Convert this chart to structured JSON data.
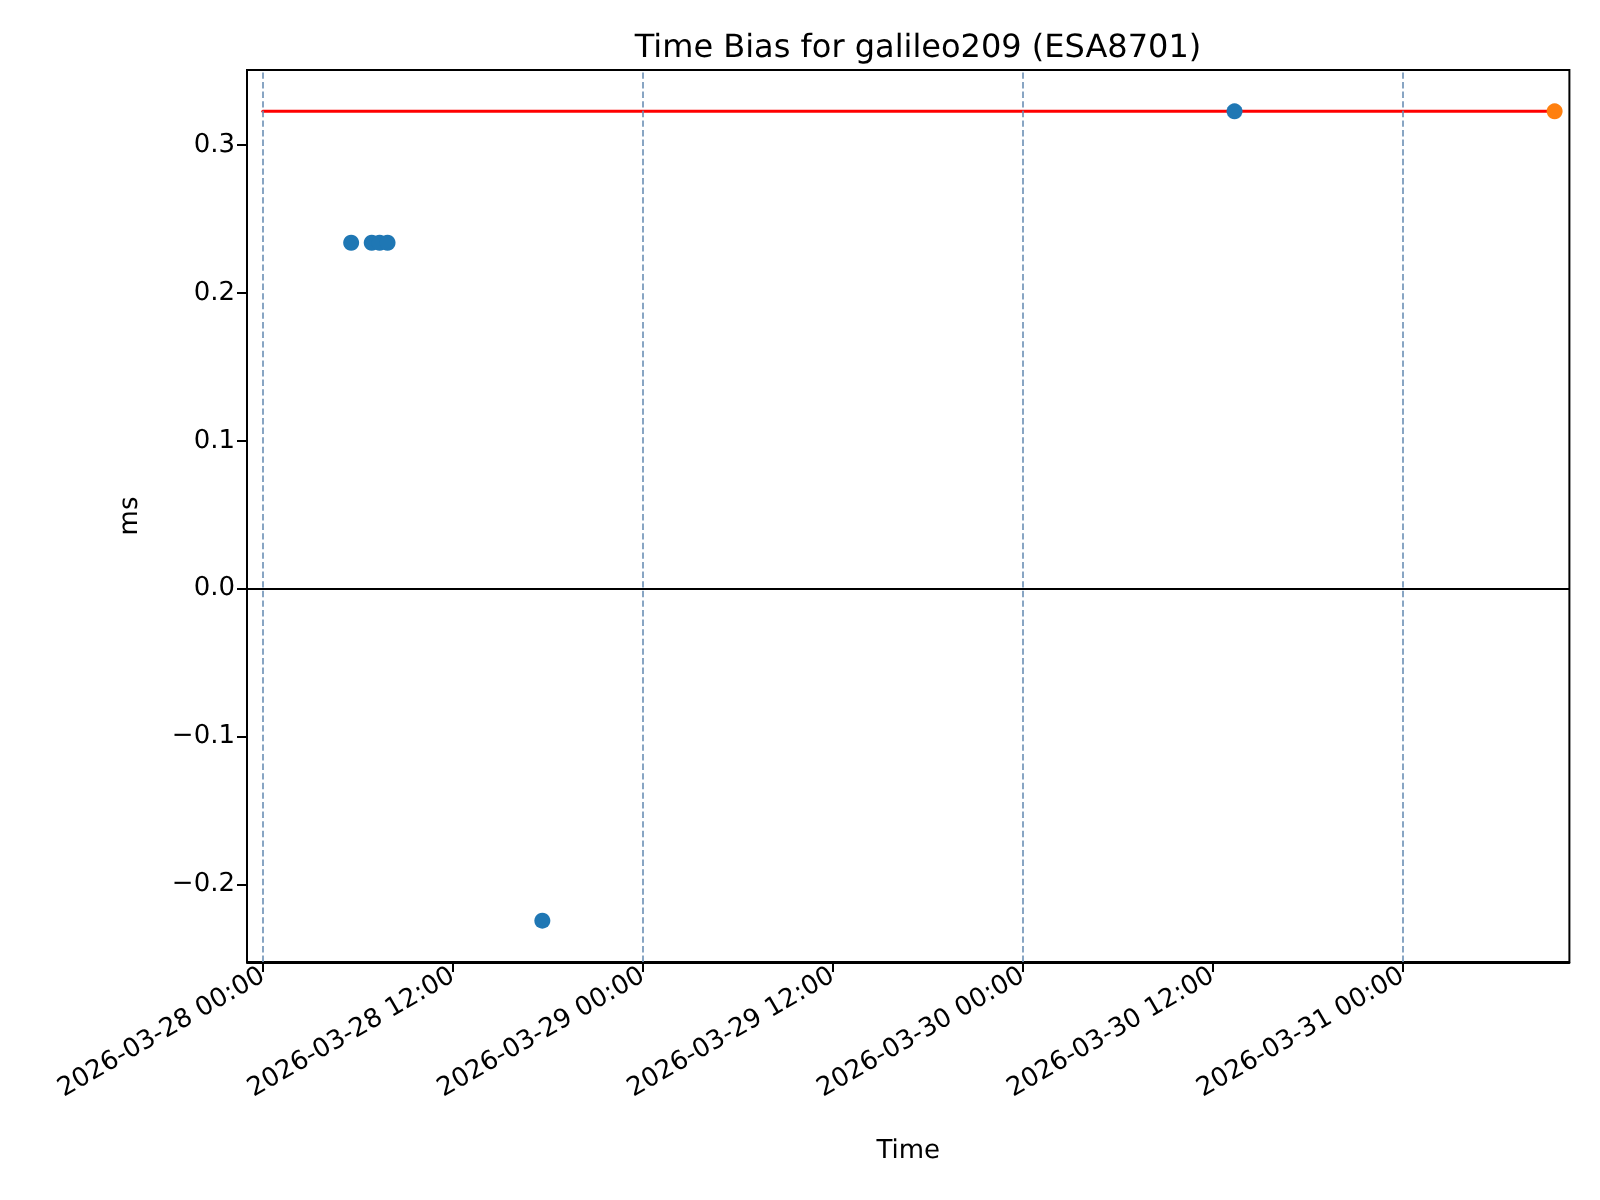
{
  "chart_data": {
    "type": "scatter",
    "title": "Time Bias for galileo209 (ESA8701)",
    "xlabel": "Time",
    "ylabel": "ms",
    "xlim": [
      "2026-03-27T23:00",
      "2026-03-31T10:35"
    ],
    "xticks": [
      {
        "value": "2026-03-28T00:00",
        "label": "2026-03-28 00:00"
      },
      {
        "value": "2026-03-28T12:00",
        "label": "2026-03-28 12:00"
      },
      {
        "value": "2026-03-29T00:00",
        "label": "2026-03-29 00:00"
      },
      {
        "value": "2026-03-29T12:00",
        "label": "2026-03-29 12:00"
      },
      {
        "value": "2026-03-30T00:00",
        "label": "2026-03-30 00:00"
      },
      {
        "value": "2026-03-30T12:00",
        "label": "2026-03-30 12:00"
      },
      {
        "value": "2026-03-31T00:00",
        "label": "2026-03-31 00:00"
      }
    ],
    "ylim": [
      -0.253,
      0.351
    ],
    "yticks": [
      {
        "value": -0.2,
        "label": "−0.2"
      },
      {
        "value": -0.1,
        "label": "−0.1"
      },
      {
        "value": 0,
        "label": "0.0"
      },
      {
        "value": 0.1,
        "label": "0.1"
      },
      {
        "value": 0.2,
        "label": "0.2"
      },
      {
        "value": 0.3,
        "label": "0.3"
      }
    ],
    "marker": "circle",
    "series": [
      {
        "type": "line",
        "marker": "none",
        "line_style": "solid",
        "color": "#ff0000",
        "x": [
          "2026-03-28T00:00",
          "2026-03-31T09:39"
        ],
        "values": [
          0.323,
          0.323
        ]
      },
      {
        "color": "#1f77b4",
        "x": [
          "2026-03-28T05:35",
          "2026-03-28T06:53",
          "2026-03-28T07:23",
          "2026-03-28T07:53",
          "2026-03-28T17:40",
          "2026-03-30T13:25"
        ],
        "values": [
          0.234,
          0.234,
          0.234,
          0.234,
          -0.225,
          0.323
        ]
      },
      {
        "color": "#ff7f0e",
        "x": [
          "2026-03-31T09:39"
        ],
        "values": [
          0.323
        ]
      }
    ],
    "ref_lines": [
      {
        "axis": "y",
        "value": 0,
        "color": "#000000",
        "line_style": "solid"
      },
      {
        "axis": "x",
        "value": "2026-03-28T00:00",
        "color": "#6b8fb5",
        "line_style": "dashed"
      },
      {
        "axis": "x",
        "value": "2026-03-29T00:00",
        "color": "#6b8fb5",
        "line_style": "dashed"
      },
      {
        "axis": "x",
        "value": "2026-03-30T00:00",
        "color": "#6b8fb5",
        "line_style": "dashed"
      },
      {
        "axis": "x",
        "value": "2026-03-31T00:00",
        "color": "#6b8fb5",
        "line_style": "dashed"
      }
    ]
  }
}
